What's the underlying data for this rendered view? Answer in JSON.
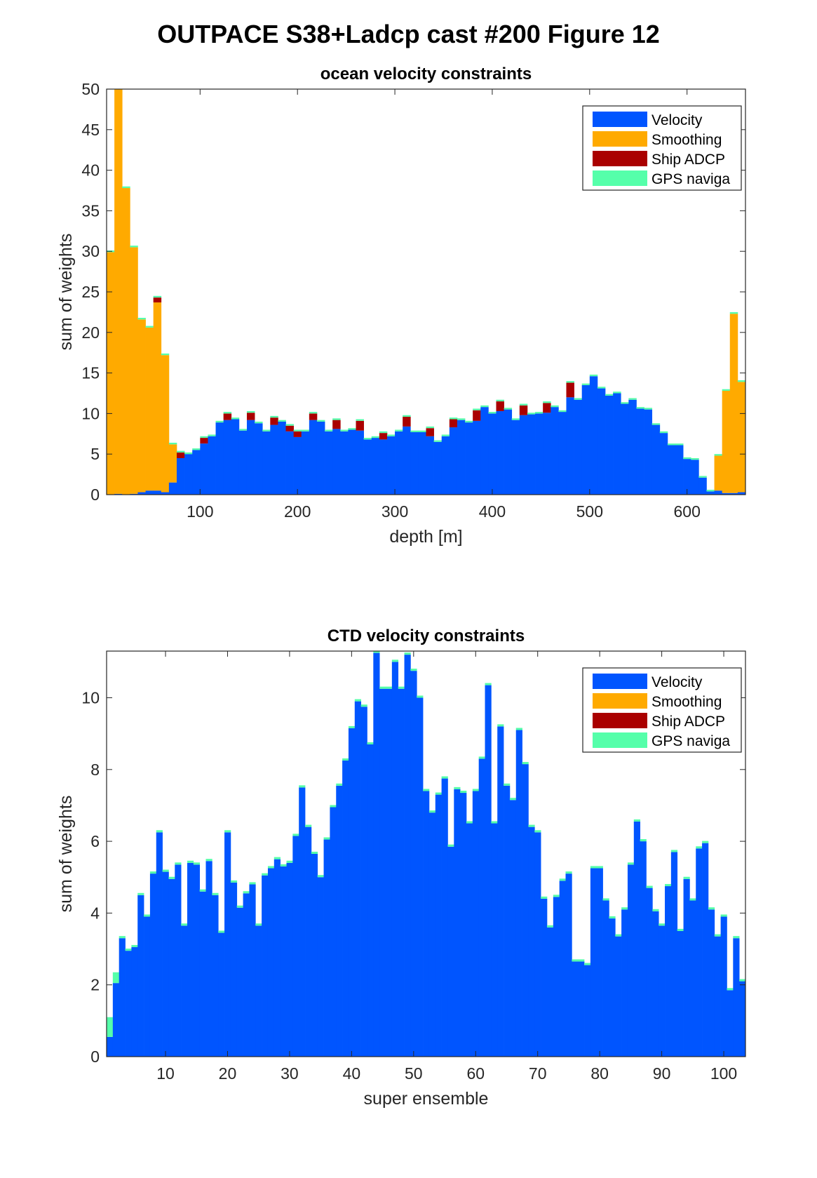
{
  "figure": {
    "title": "OUTPACE S38+Ladcp cast #200  Figure 12"
  },
  "chart_data": [
    {
      "type": "bar",
      "stacked": true,
      "title": "ocean velocity constraints",
      "xlabel": "depth [m]",
      "ylabel": "sum of weights",
      "xlim": [
        4,
        660
      ],
      "ylim": [
        0,
        50
      ],
      "xticks": [
        100,
        200,
        300,
        400,
        500,
        600
      ],
      "yticks": [
        0,
        5,
        10,
        15,
        20,
        25,
        30,
        35,
        40,
        45,
        50
      ],
      "bin_width": 8,
      "legend_position": "top-right",
      "x": [
        8,
        16,
        24,
        32,
        40,
        48,
        56,
        64,
        72,
        80,
        88,
        96,
        104,
        112,
        120,
        128,
        136,
        144,
        152,
        160,
        168,
        176,
        184,
        192,
        200,
        208,
        216,
        224,
        232,
        240,
        248,
        256,
        264,
        272,
        280,
        288,
        296,
        304,
        312,
        320,
        328,
        336,
        344,
        352,
        360,
        368,
        376,
        384,
        392,
        400,
        408,
        416,
        424,
        432,
        440,
        448,
        456,
        464,
        472,
        480,
        488,
        496,
        504,
        512,
        520,
        528,
        536,
        544,
        552,
        560,
        568,
        576,
        584,
        592,
        600,
        608,
        616,
        624,
        632,
        640,
        648,
        656
      ],
      "series": [
        {
          "name": "Velocity",
          "color": "#0055ff",
          "values": [
            0,
            0.1,
            0,
            0.1,
            0.3,
            0.5,
            0.5,
            0.3,
            1.5,
            4.5,
            5,
            5.5,
            6.3,
            7.2,
            8.9,
            9.2,
            9.3,
            7.9,
            9.2,
            8.8,
            7.8,
            8.6,
            9,
            7.8,
            7.1,
            7.8,
            9.2,
            9,
            7.8,
            8.1,
            7.8,
            8,
            7.9,
            6.8,
            7,
            6.8,
            7.2,
            7.8,
            8.4,
            7.7,
            7.7,
            7.2,
            6.5,
            7.2,
            8.3,
            9.2,
            8.9,
            9.1,
            10.8,
            10,
            10.3,
            10.5,
            9.2,
            9.8,
            9.9,
            10,
            10.1,
            10.8,
            10.2,
            12,
            11.7,
            13.5,
            14.6,
            13.1,
            12.2,
            12.5,
            11.2,
            11.7,
            10.6,
            10.5,
            8.6,
            7.6,
            6.1,
            6.1,
            4.4,
            4.3,
            2.1,
            0.4,
            0.5,
            0.2,
            0.2,
            0.3
          ]
        },
        {
          "name": "Smoothing",
          "color": "#ffaa00",
          "values": [
            29.9,
            50,
            37.8,
            30.4,
            21.3,
            20.1,
            23.2,
            16.9,
            4.7,
            0,
            0,
            0,
            0,
            0,
            0,
            0,
            0,
            0,
            0,
            0,
            0,
            0,
            0,
            0,
            0,
            0,
            0,
            0,
            0,
            0,
            0,
            0,
            0,
            0,
            0,
            0,
            0,
            0,
            0,
            0,
            0,
            0,
            0,
            0,
            0,
            0,
            0,
            0,
            0,
            0,
            0,
            0,
            0,
            0,
            0,
            0,
            0,
            0,
            0,
            0,
            0,
            0,
            0,
            0,
            0,
            0,
            0,
            0,
            0,
            0,
            0,
            0,
            0,
            0,
            0,
            0,
            0,
            0,
            4.3,
            12.6,
            22.1,
            13.6
          ]
        },
        {
          "name": "Ship ADCP",
          "color": "#aa0000",
          "values": [
            0,
            0,
            0,
            0,
            0,
            0,
            0.6,
            0,
            0,
            0.7,
            0,
            0,
            0.7,
            0,
            0,
            0.8,
            0,
            0,
            0.9,
            0,
            0,
            0.9,
            0,
            0.7,
            0.7,
            0,
            0.8,
            0,
            0,
            1.1,
            0,
            0,
            1.2,
            0,
            0,
            0.8,
            0,
            0,
            1.2,
            0,
            0,
            1,
            0,
            0,
            1,
            0,
            0,
            1.3,
            0,
            0,
            1.2,
            0,
            0,
            1.2,
            0,
            0,
            1.2,
            0,
            0,
            1.8,
            0,
            0,
            0,
            0,
            0,
            0,
            0,
            0,
            0,
            0,
            0,
            0,
            0,
            0,
            0,
            0,
            0,
            0,
            0,
            0,
            0,
            0
          ]
        },
        {
          "name": "GPS naviga",
          "color": "#55ffaa",
          "values": [
            0.2,
            0.2,
            0.2,
            0.2,
            0.2,
            0.2,
            0.2,
            0.2,
            0.2,
            0.2,
            0.2,
            0.2,
            0.2,
            0.2,
            0.2,
            0.2,
            0.2,
            0.2,
            0.2,
            0.2,
            0.2,
            0.2,
            0.2,
            0.2,
            0.2,
            0.2,
            0.2,
            0.2,
            0.2,
            0.2,
            0.2,
            0.2,
            0.2,
            0.2,
            0.2,
            0.2,
            0.2,
            0.2,
            0.2,
            0.2,
            0.2,
            0.2,
            0.2,
            0.2,
            0.2,
            0.2,
            0.2,
            0.2,
            0.2,
            0.2,
            0.2,
            0.2,
            0.2,
            0.2,
            0.2,
            0.2,
            0.2,
            0.2,
            0.2,
            0.2,
            0.2,
            0.2,
            0.2,
            0.2,
            0.2,
            0.2,
            0.2,
            0.2,
            0.2,
            0.2,
            0.2,
            0.2,
            0.2,
            0.2,
            0.2,
            0.2,
            0.2,
            0.2,
            0.2,
            0.2,
            0.2,
            0.2
          ]
        }
      ]
    },
    {
      "type": "bar",
      "stacked": true,
      "title": "CTD velocity constraints",
      "xlabel": "super ensemble",
      "ylabel": "sum of weights",
      "xlim": [
        0.5,
        103.5
      ],
      "ylim": [
        0,
        11.3
      ],
      "xticks": [
        10,
        20,
        30,
        40,
        50,
        60,
        70,
        80,
        90,
        100
      ],
      "yticks": [
        0,
        2,
        4,
        6,
        8,
        10
      ],
      "legend_position": "top-right",
      "series": [
        {
          "name": "Velocity",
          "color": "#0055ff",
          "values": [
            0.55,
            2.05,
            3.3,
            2.95,
            3.05,
            4.5,
            3.9,
            5.1,
            6.25,
            5.15,
            4.95,
            5.35,
            3.65,
            5.4,
            5.35,
            4.6,
            5.45,
            4.5,
            3.45,
            6.25,
            4.85,
            4.15,
            4.55,
            4.8,
            3.65,
            5.05,
            5.25,
            5.5,
            5.3,
            5.4,
            6.15,
            7.5,
            6.4,
            5.65,
            5.0,
            6.05,
            6.95,
            7.55,
            8.25,
            9.15,
            9.9,
            9.75,
            8.7,
            11.25,
            10.25,
            10.25,
            11.0,
            10.25,
            11.2,
            10.75,
            10.0,
            7.4,
            6.8,
            7.3,
            7.75,
            5.85,
            7.45,
            7.35,
            6.5,
            7.4,
            8.3,
            10.35,
            6.5,
            9.2,
            7.55,
            7.15,
            9.1,
            8.15,
            6.4,
            6.25,
            4.4,
            3.6,
            4.45,
            4.9,
            5.1,
            2.65,
            2.65,
            2.55,
            5.25,
            5.25,
            4.35,
            3.85,
            3.35,
            4.1,
            5.35,
            6.55,
            6.0,
            4.7,
            4.05,
            3.65,
            4.75,
            5.7,
            3.5,
            4.95,
            4.35,
            5.8,
            5.95,
            4.1,
            3.35,
            3.9,
            1.85,
            3.3,
            2.1
          ]
        },
        {
          "name": "Smoothing",
          "color": "#ffaa00",
          "values": [
            0,
            0,
            0,
            0,
            0,
            0,
            0,
            0,
            0,
            0,
            0,
            0,
            0,
            0,
            0,
            0,
            0,
            0,
            0,
            0,
            0,
            0,
            0,
            0,
            0,
            0,
            0,
            0,
            0,
            0,
            0,
            0,
            0,
            0,
            0,
            0,
            0,
            0,
            0,
            0,
            0,
            0,
            0,
            0,
            0,
            0,
            0,
            0,
            0,
            0,
            0,
            0,
            0,
            0,
            0,
            0,
            0,
            0,
            0,
            0,
            0,
            0,
            0,
            0,
            0,
            0,
            0,
            0,
            0,
            0,
            0,
            0,
            0,
            0,
            0,
            0,
            0,
            0,
            0,
            0,
            0,
            0,
            0,
            0,
            0,
            0,
            0,
            0,
            0,
            0,
            0,
            0,
            0,
            0,
            0,
            0,
            0,
            0,
            0,
            0,
            0,
            0,
            0
          ]
        },
        {
          "name": "Ship ADCP",
          "color": "#aa0000",
          "values": [
            0,
            0,
            0,
            0,
            0,
            0,
            0,
            0,
            0,
            0,
            0,
            0,
            0,
            0,
            0,
            0,
            0,
            0,
            0,
            0,
            0,
            0,
            0,
            0,
            0,
            0,
            0,
            0,
            0,
            0,
            0,
            0,
            0,
            0,
            0,
            0,
            0,
            0,
            0,
            0,
            0,
            0,
            0,
            0,
            0,
            0,
            0,
            0,
            0,
            0,
            0,
            0,
            0,
            0,
            0,
            0,
            0,
            0,
            0,
            0,
            0,
            0,
            0,
            0,
            0,
            0,
            0,
            0,
            0,
            0,
            0,
            0,
            0,
            0,
            0,
            0,
            0,
            0,
            0,
            0,
            0,
            0,
            0,
            0,
            0,
            0,
            0,
            0,
            0,
            0,
            0,
            0,
            0,
            0,
            0,
            0,
            0,
            0,
            0,
            0,
            0,
            0,
            0
          ]
        },
        {
          "name": "GPS naviga",
          "color": "#55ffaa",
          "values": [
            0.55,
            0.3,
            0.06,
            0.06,
            0.06,
            0.06,
            0.06,
            0.06,
            0.06,
            0.06,
            0.06,
            0.06,
            0.06,
            0.06,
            0.06,
            0.06,
            0.06,
            0.06,
            0.06,
            0.06,
            0.06,
            0.06,
            0.06,
            0.06,
            0.06,
            0.06,
            0.06,
            0.06,
            0.06,
            0.06,
            0.06,
            0.06,
            0.06,
            0.06,
            0.06,
            0.06,
            0.06,
            0.06,
            0.06,
            0.06,
            0.06,
            0.06,
            0.06,
            0.06,
            0.06,
            0.06,
            0.06,
            0.06,
            0.06,
            0.06,
            0.06,
            0.06,
            0.06,
            0.06,
            0.06,
            0.06,
            0.06,
            0.06,
            0.06,
            0.06,
            0.06,
            0.06,
            0.06,
            0.06,
            0.06,
            0.06,
            0.06,
            0.06,
            0.06,
            0.06,
            0.06,
            0.06,
            0.06,
            0.06,
            0.06,
            0.06,
            0.06,
            0.06,
            0.06,
            0.06,
            0.06,
            0.06,
            0.06,
            0.06,
            0.06,
            0.06,
            0.06,
            0.06,
            0.06,
            0.06,
            0.06,
            0.06,
            0.06,
            0.06,
            0.06,
            0.06,
            0.06,
            0.06,
            0.06,
            0.06,
            0.06,
            0.06,
            0.06
          ]
        }
      ]
    }
  ]
}
